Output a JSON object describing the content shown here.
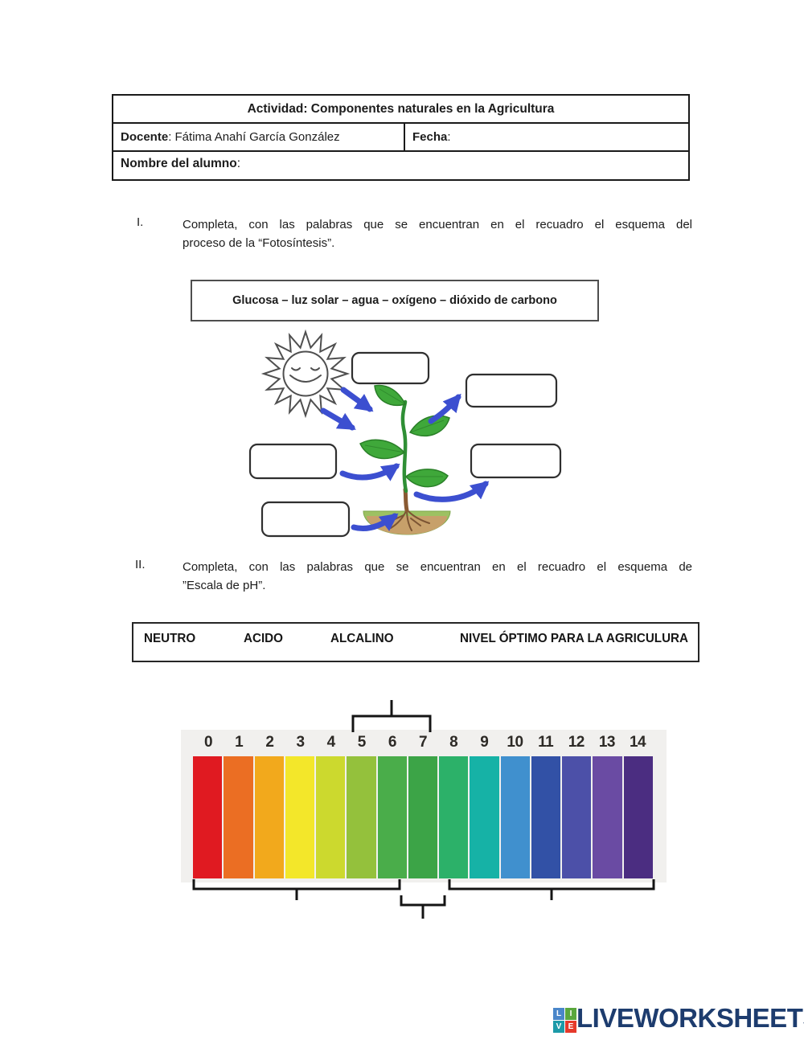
{
  "header_table": {
    "title": "Actividad: Componentes naturales en la Agricultura",
    "docente_label": "Docente",
    "docente_value": ": Fátima Anahí García González",
    "fecha_label": "Fecha",
    "fecha_suffix": ":",
    "nombre_label": "Nombre del alumno",
    "nombre_suffix": ":"
  },
  "section1": {
    "numeral": "I.",
    "lines": [
      "Completa, con las palabras que se encuentran en el recuadro el esquema del",
      "proceso de la  “Fotosíntesis”."
    ],
    "word_bank": "Glucosa – luz solar – agua – oxígeno – dióxido de carbono"
  },
  "diagram": {
    "answer_boxes": [
      "",
      "",
      "",
      "",
      ""
    ]
  },
  "section2": {
    "numeral": "II.",
    "lines": [
      "Completa, con las palabras que se encuentran en el recuadro el esquema de",
      "”Escala de pH”."
    ],
    "word_bank": [
      "NEUTRO",
      "ACIDO",
      "ALCALINO",
      "NIVEL ÓPTIMO PARA LA AGRICULURA"
    ]
  },
  "ph_scale": {
    "segments": [
      {
        "label": "0",
        "color": "#e01a21"
      },
      {
        "label": "1",
        "color": "#eb6e23"
      },
      {
        "label": "2",
        "color": "#f2a91c"
      },
      {
        "label": "3",
        "color": "#f3e72a"
      },
      {
        "label": "4",
        "color": "#ccd92e"
      },
      {
        "label": "5",
        "color": "#94c13c"
      },
      {
        "label": "6",
        "color": "#4aad4a"
      },
      {
        "label": "7",
        "color": "#3ca447"
      },
      {
        "label": "8",
        "color": "#2cb169"
      },
      {
        "label": "9",
        "color": "#16b2a6"
      },
      {
        "label": "10",
        "color": "#4090ce"
      },
      {
        "label": "11",
        "color": "#3251a6"
      },
      {
        "label": "12",
        "color": "#4c50a8"
      },
      {
        "label": "13",
        "color": "#6a4ba3"
      },
      {
        "label": "14",
        "color": "#4b2d81"
      }
    ]
  },
  "footer": {
    "brand": "LIVEWORKSHEETS",
    "logo": [
      {
        "letter": "L",
        "color": "#4a86c9"
      },
      {
        "letter": "I",
        "color": "#5aa73d"
      },
      {
        "letter": "V",
        "color": "#1c9aa8"
      },
      {
        "letter": "E",
        "color": "#e6392b"
      }
    ]
  }
}
